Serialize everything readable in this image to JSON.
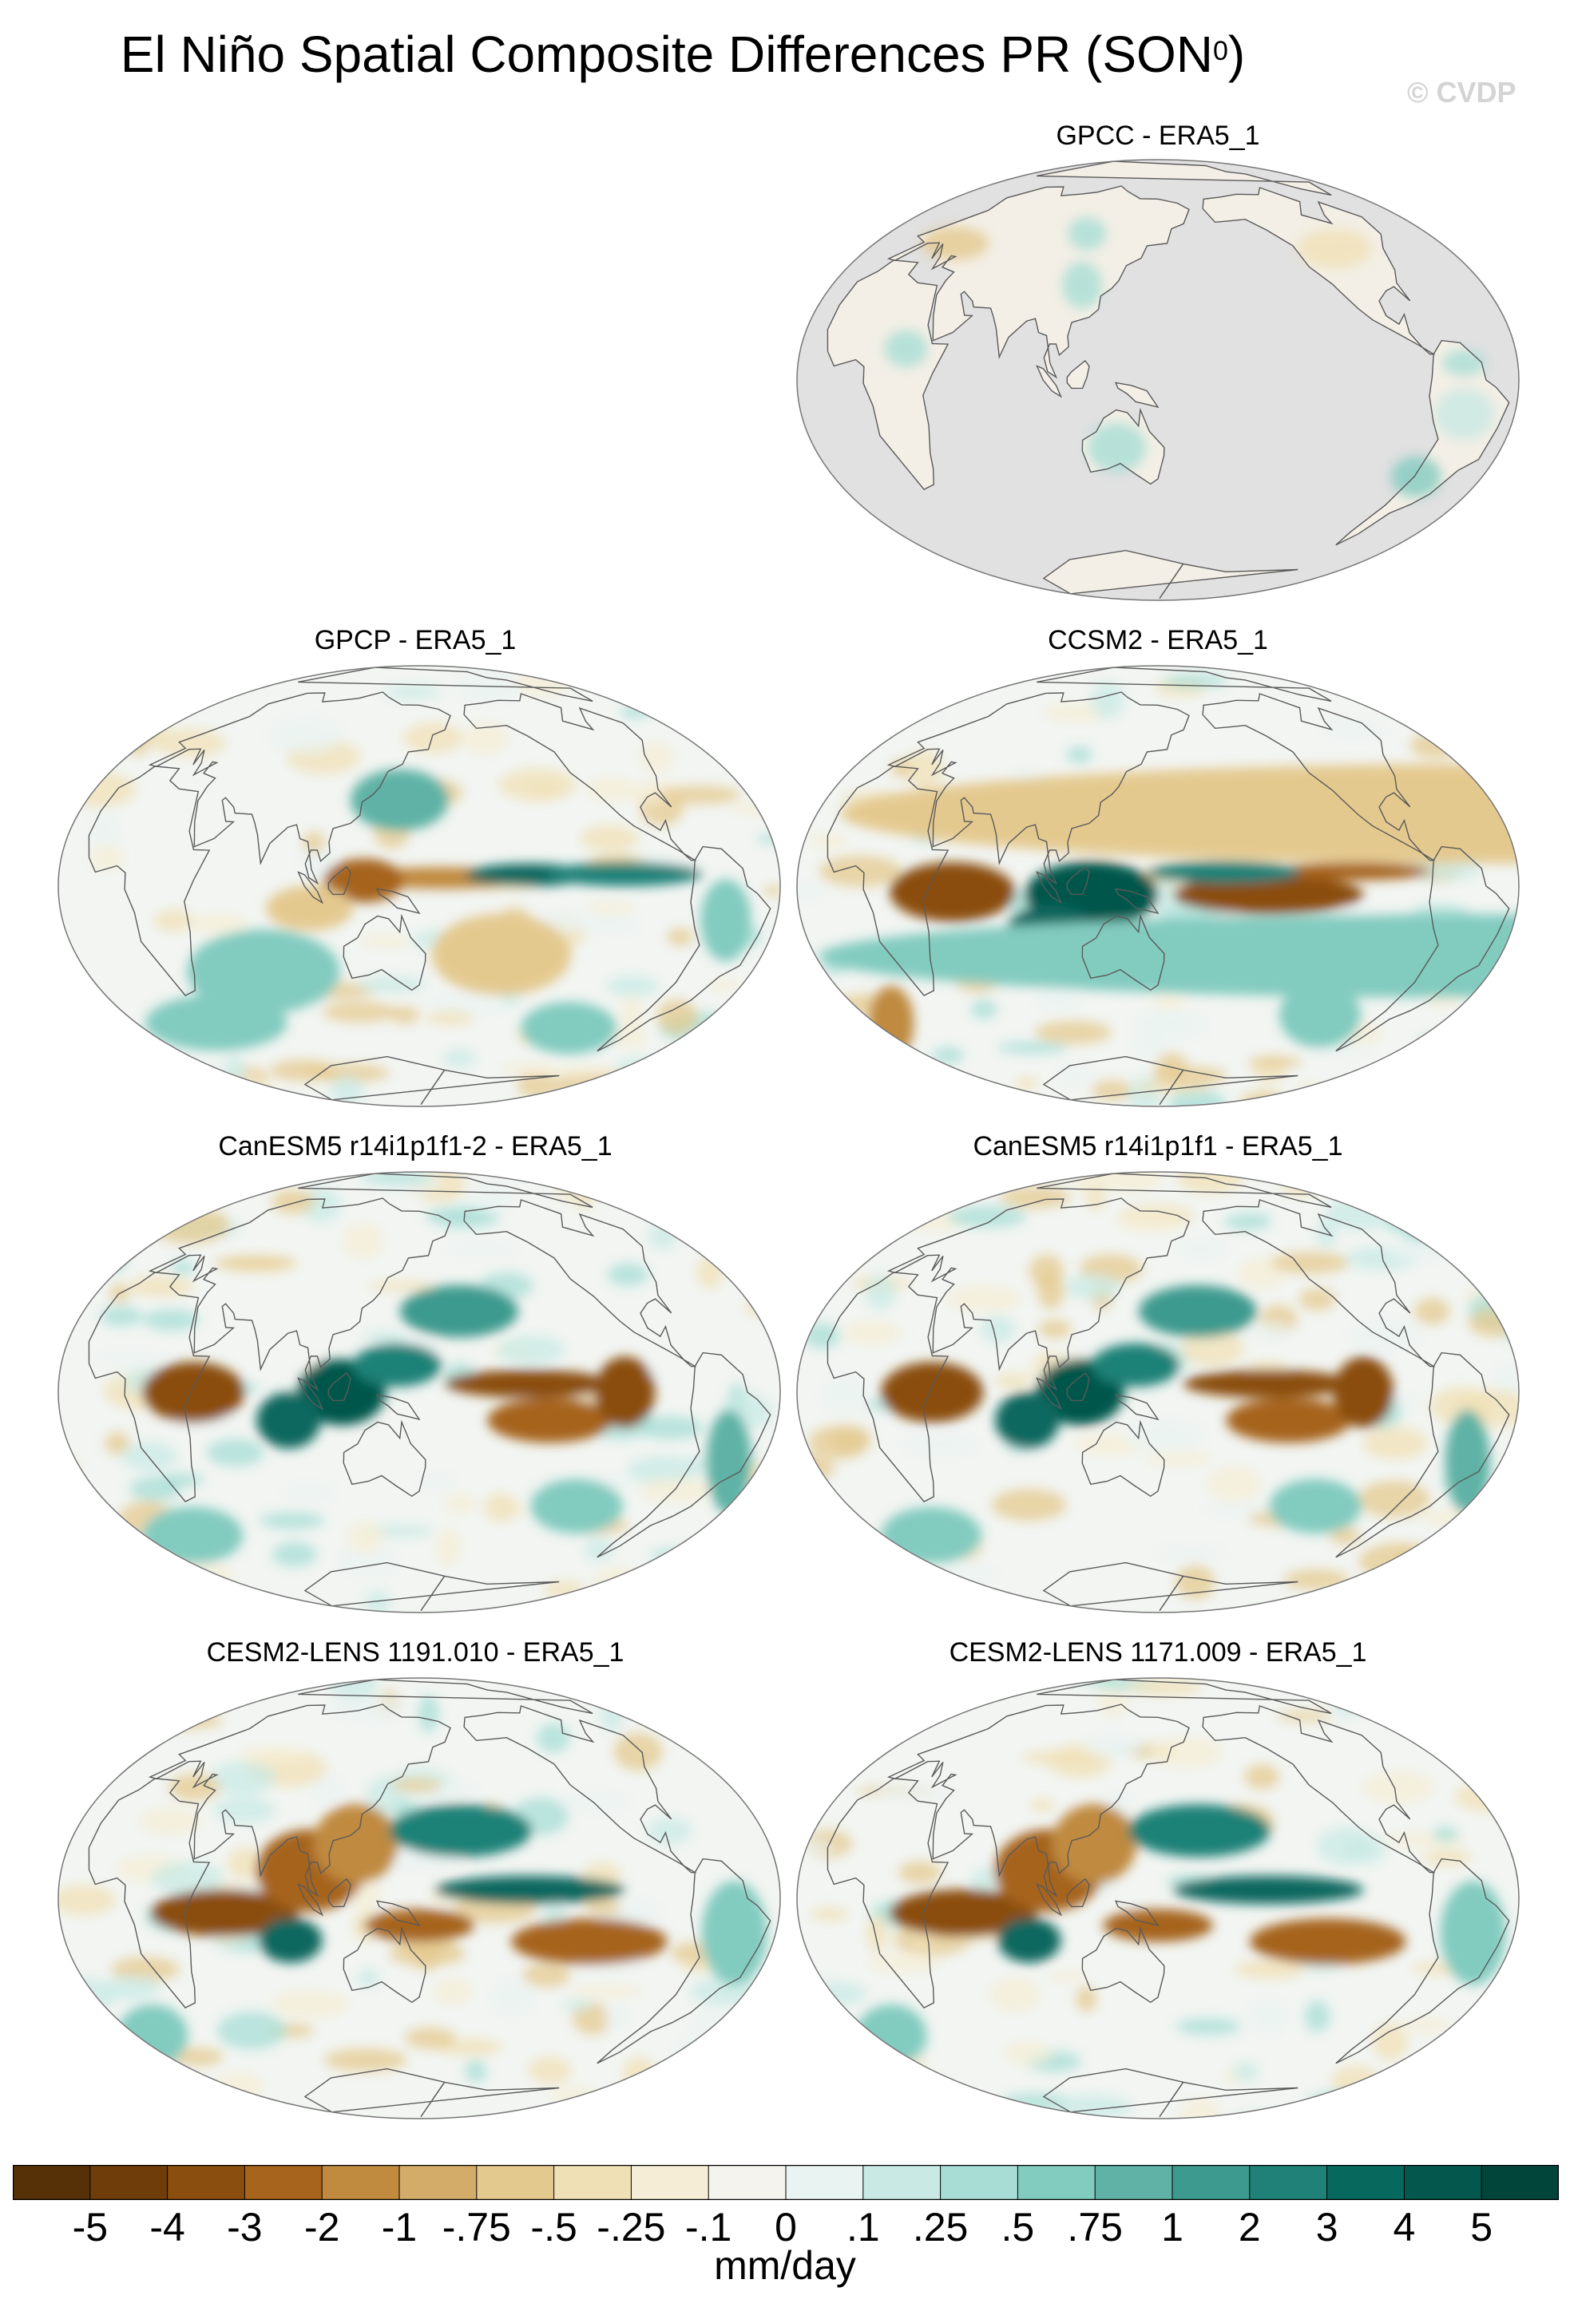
{
  "figure": {
    "title_main": "El Niño Spatial Composite Differences PR (SON",
    "title_sup": "0",
    "title_end": ")",
    "watermark": "© CVDP"
  },
  "panels": [
    {
      "title": "GPCC - ERA5_1",
      "land_only": true
    },
    {
      "title": "GPCP - ERA5_1",
      "land_only": false
    },
    {
      "title": "CCSM2 - ERA5_1",
      "land_only": false
    },
    {
      "title": "CanESM5 r14i1p1f1-2 - ERA5_1",
      "land_only": false
    },
    {
      "title": "CanESM5 r14i1p1f1 - ERA5_1",
      "land_only": false
    },
    {
      "title": "CESM2-LENS 1191.010 - ERA5_1",
      "land_only": false
    },
    {
      "title": "CESM2-LENS 1171.009 - ERA5_1",
      "land_only": false
    }
  ],
  "colorbar": {
    "units": "mm/day",
    "labels": [
      "-5",
      "-4",
      "-3",
      "-2",
      "-1",
      "-.75",
      "-.5",
      "-.25",
      "-.1",
      "0",
      ".1",
      ".25",
      ".5",
      ".75",
      "1",
      "2",
      "3",
      "4",
      "5"
    ],
    "colors": [
      "#563006",
      "#6e3d09",
      "#8a4e0e",
      "#a6641c",
      "#c08a3f",
      "#d3ac69",
      "#e4c98f",
      "#f0e0b5",
      "#f6edd6",
      "#f5f3ee",
      "#e9f3f1",
      "#c9e9e4",
      "#a7ddd5",
      "#82cbbf",
      "#5fb2a5",
      "#3c9a8e",
      "#1f8177",
      "#07685e",
      "#03574c",
      "#01453a"
    ]
  }
}
